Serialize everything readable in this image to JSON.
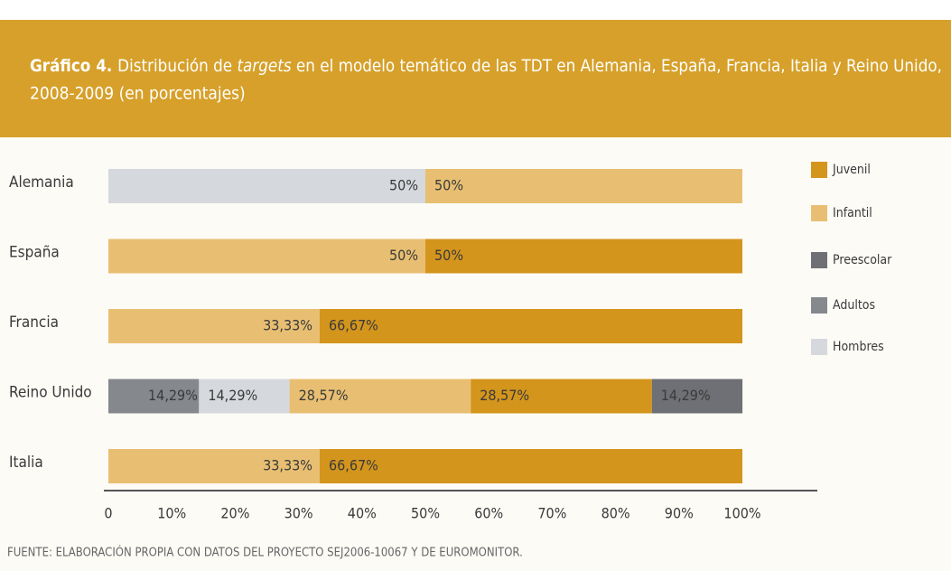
{
  "chart_data": {
    "type": "stacked-bar-horizontal",
    "title_prefix": "Gráfico 4.",
    "title": [
      "Distribución de ",
      "targets",
      " en el modelo temático de las TDT en Alemania, España, Francia, Italia y Reino Unido,",
      "2008-2009 (en porcentajes)"
    ],
    "categories": [
      "Alemania",
      "España",
      "Francia",
      "Reino Unido",
      "Italia"
    ],
    "series": [
      {
        "name": "Juvenil",
        "color": "#d4951c",
        "values": [
          null,
          50,
          66.67,
          28.57,
          66.67
        ],
        "value_labels": [
          null,
          "50%",
          "66,67%",
          "28,57%",
          "66,67%"
        ]
      },
      {
        "name": "Infantil",
        "color": "#e8bf72",
        "values": [
          50,
          50,
          33.33,
          28.57,
          33.33
        ],
        "value_labels": [
          "50%",
          "50%",
          "33,33%",
          "28,57%",
          "33,33%"
        ]
      },
      {
        "name": "Preescolar",
        "color": "#6e7075",
        "values": [
          null,
          null,
          null,
          14.29,
          null
        ],
        "value_labels": [
          null,
          null,
          null,
          "14,29%",
          null
        ]
      },
      {
        "name": "Adultos",
        "color": "#85888d",
        "values": [
          null,
          null,
          null,
          14.29,
          null
        ],
        "value_labels": [
          null,
          null,
          null,
          "14,29%",
          null
        ]
      },
      {
        "name": "Hombres",
        "color": "#d5d8dc",
        "values": [
          50,
          null,
          null,
          14.29,
          null
        ],
        "value_labels": [
          "50%",
          null,
          null,
          "14,29%",
          null
        ]
      }
    ],
    "stack_order": [
      3,
      4,
      1,
      0,
      2
    ],
    "xlim": [
      0,
      100
    ],
    "xticks": [
      0,
      {
        "value": 10,
        "label": "10%"
      },
      {
        "value": 20,
        "label": "20%"
      },
      {
        "value": 30,
        "label": "30%"
      },
      {
        "value": 40,
        "label": "40%"
      },
      {
        "value": 50,
        "label": "50%"
      },
      {
        "value": 60,
        "label": "60%"
      },
      {
        "value": 70,
        "label": "70%"
      },
      {
        "value": 80,
        "label": "80%"
      },
      {
        "value": 90,
        "label": "90%"
      },
      {
        "value": 100,
        "label": "100%"
      }
    ],
    "source": "FUENTE: ELABORACIÓN PROPIA CON DATOS DEL PROYECTO SEJ2006-10067 Y DE EUROMONITOR."
  }
}
